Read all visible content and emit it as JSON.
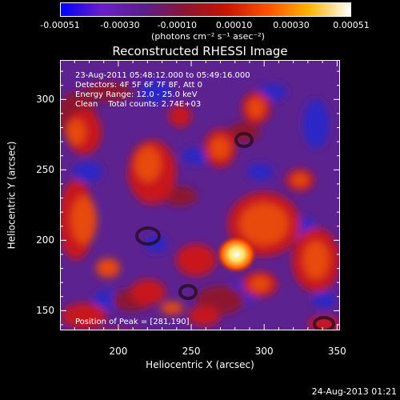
{
  "chart_data": {
    "type": "heatmap",
    "title": "Reconstructed RHESSI Image",
    "xlabel": "Heliocentric X (arcsec)",
    "ylabel": "Heliocentric Y (arcsec)",
    "xlim": [
      160,
      352
    ],
    "ylim": [
      136,
      328
    ],
    "x_ticks": [
      "200",
      "250",
      "300",
      "350"
    ],
    "x_tick_values": [
      200,
      250,
      300,
      350
    ],
    "y_ticks": [
      "150",
      "200",
      "250",
      "300"
    ],
    "y_tick_values": [
      150,
      200,
      250,
      300
    ],
    "colorbar": {
      "ticks": [
        "-0.00051",
        "-0.00030",
        "-0.00010",
        "0.00010",
        "0.00030",
        "0.00051"
      ],
      "tick_values": [
        -0.00051,
        -0.0003,
        -0.0001,
        0.0001,
        0.0003,
        0.00051
      ],
      "range": [
        -0.00051,
        0.00051
      ],
      "units": "(photons cm⁻² s⁻¹ asec⁻²)",
      "colors": [
        "#0000ff",
        "#6a1ec8",
        "#5a1e8c",
        "#8c1432",
        "#c81400",
        "#ff5000",
        "#ffb400",
        "#ffffff"
      ]
    },
    "annotations": [
      "23-Aug-2011 05:48:12.000 to 05:49:16.000",
      "Detectors: 4F 5F 6F 7F 8F, Att 0",
      "Energy Range: 12.0 - 25.0 keV",
      "Clean    Total counts: 2.74E+03"
    ],
    "peak_label": "Position of Peak = [281,190]",
    "peak": [
      281,
      190
    ]
  },
  "footer": {
    "date": "24-Aug-2013 01:21"
  }
}
